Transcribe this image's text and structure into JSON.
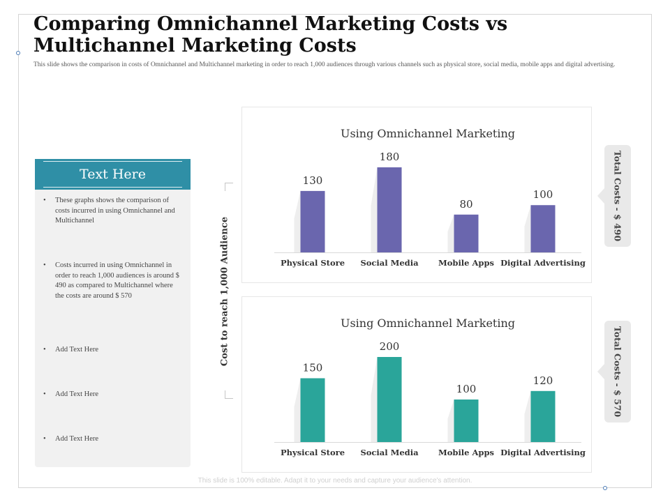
{
  "slide": {
    "title": "Comparing Omnichannel Marketing Costs vs Multichannel Marketing Costs",
    "subtitle": "This slide shows the comparison in costs of Omnichannel and Multichannel marketing in order to reach 1,000 audiences through various channels such as physical store, social media, mobile apps and digital advertising.",
    "footer": "This slide is 100% editable. Adapt it to your needs and capture your audience's attention."
  },
  "panel": {
    "heading": "Text Here",
    "bullets": [
      "These graphs shows the comparison of costs incurred    in using Omnichannel  and Multichannel",
      "Costs incurred in using Omnichannel in order to reach 1,000 audiences is around $ 490 as compared to Multichannel where the costs are around $ 570",
      "Add Text Here",
      "Add Text Here",
      "Add Text Here"
    ],
    "bullet_symbol": "•"
  },
  "shared_axis_label": "Cost to reach 1,000 Audience",
  "colors": {
    "accent": "#2f8fa6",
    "omnichannel_bar": "#6a66ae",
    "multichannel_bar": "#2aa59a"
  },
  "chart_data": [
    {
      "type": "bar",
      "title": "Using Omnichannel Marketing",
      "categories": [
        "Physical Store",
        "Social Media",
        "Mobile Apps",
        "Digital Advertising"
      ],
      "values": [
        130,
        180,
        80,
        100
      ],
      "data_labels": [
        "130",
        "180",
        "80",
        "100"
      ],
      "ylim": [
        0,
        180
      ],
      "grid": false,
      "color": "#6a66ae",
      "total_label": "Total Costs - $ 490"
    },
    {
      "type": "bar",
      "title": "Using Omnichannel Marketing",
      "categories": [
        "Physical Store",
        "Social Media",
        "Mobile Apps",
        "Digital Advertising"
      ],
      "values": [
        150,
        200,
        100,
        120
      ],
      "data_labels": [
        "150",
        "200",
        "100",
        "120"
      ],
      "ylim": [
        0,
        200
      ],
      "grid": false,
      "color": "#2aa59a",
      "total_label": "Total Costs - $ 570"
    }
  ]
}
